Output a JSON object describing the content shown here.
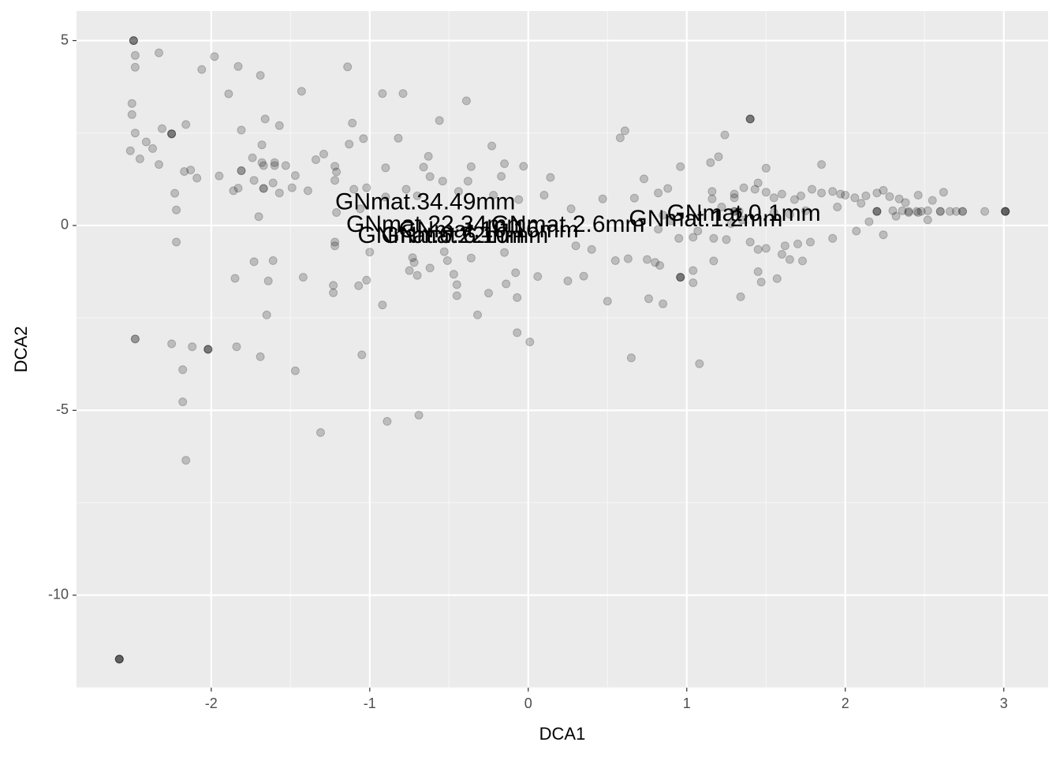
{
  "chart_data": {
    "type": "scatter",
    "xlabel": "DCA1",
    "ylabel": "DCA2",
    "xlim": [
      -2.85,
      3.28
    ],
    "ylim": [
      -12.5,
      5.8
    ],
    "x_ticks": [
      -2,
      -1,
      0,
      1,
      2,
      3
    ],
    "y_ticks": [
      -10,
      -5,
      0,
      5
    ],
    "x_tick_labels": [
      "-2",
      "-1",
      "0",
      "1",
      "2",
      "3"
    ],
    "y_tick_labels": [
      "-10",
      "-5",
      "0",
      "5"
    ],
    "grid": true,
    "background": "#ebebeb",
    "point_color": "#000000",
    "point_opacity": 0.2,
    "points": [
      [
        -2.49,
        5.0
      ],
      [
        -2.49,
        5.0
      ],
      [
        -2.49,
        5.0
      ],
      [
        -2.48,
        4.6
      ],
      [
        -2.48,
        4.28
      ],
      [
        -2.33,
        4.67
      ],
      [
        -2.06,
        4.22
      ],
      [
        -1.98,
        4.57
      ],
      [
        -1.83,
        4.3
      ],
      [
        -1.69,
        4.06
      ],
      [
        -1.14,
        4.29
      ],
      [
        -0.92,
        3.57
      ],
      [
        -0.79,
        3.57
      ],
      [
        -1.43,
        3.63
      ],
      [
        -0.39,
        3.37
      ],
      [
        -1.89,
        3.56
      ],
      [
        -2.5,
        3.3
      ],
      [
        -2.5,
        3.0
      ],
      [
        -2.48,
        2.5
      ],
      [
        -2.31,
        2.62
      ],
      [
        -2.25,
        2.48
      ],
      [
        -2.25,
        2.48
      ],
      [
        -2.25,
        2.48
      ],
      [
        -2.16,
        2.73
      ],
      [
        -1.81,
        2.58
      ],
      [
        -1.66,
        2.88
      ],
      [
        -1.57,
        2.7
      ],
      [
        -1.11,
        2.77
      ],
      [
        -0.56,
        2.84
      ],
      [
        -2.41,
        2.26
      ],
      [
        -2.37,
        2.08
      ],
      [
        -2.51,
        2.02
      ],
      [
        -2.45,
        1.8
      ],
      [
        -2.33,
        1.65
      ],
      [
        -2.13,
        1.5
      ],
      [
        -2.17,
        1.46
      ],
      [
        -2.09,
        1.28
      ],
      [
        -1.95,
        1.34
      ],
      [
        -1.81,
        1.48
      ],
      [
        -1.81,
        1.48
      ],
      [
        -1.74,
        1.83
      ],
      [
        -1.68,
        2.18
      ],
      [
        -1.68,
        1.7
      ],
      [
        -1.67,
        1.62
      ],
      [
        -1.6,
        1.7
      ],
      [
        -1.6,
        1.62
      ],
      [
        -1.53,
        1.62
      ],
      [
        -1.47,
        1.35
      ],
      [
        -1.34,
        1.78
      ],
      [
        -1.29,
        1.93
      ],
      [
        -1.13,
        2.2
      ],
      [
        -1.04,
        2.35
      ],
      [
        -0.82,
        2.36
      ],
      [
        -0.63,
        1.87
      ],
      [
        -0.23,
        2.15
      ],
      [
        -1.22,
        1.6
      ],
      [
        -1.21,
        1.45
      ],
      [
        -0.9,
        1.56
      ],
      [
        -0.66,
        1.58
      ],
      [
        -0.36,
        1.59
      ],
      [
        -0.15,
        1.67
      ],
      [
        -0.03,
        1.6
      ],
      [
        -1.86,
        0.94
      ],
      [
        -1.83,
        1.01
      ],
      [
        -1.73,
        1.22
      ],
      [
        -1.67,
        1.0
      ],
      [
        -1.67,
        1.0
      ],
      [
        -1.61,
        1.15
      ],
      [
        -1.57,
        0.88
      ],
      [
        -1.49,
        1.02
      ],
      [
        -1.39,
        0.94
      ],
      [
        -1.22,
        1.22
      ],
      [
        -1.1,
        0.98
      ],
      [
        -1.02,
        1.02
      ],
      [
        -0.77,
        0.98
      ],
      [
        -0.62,
        1.32
      ],
      [
        -0.54,
        1.2
      ],
      [
        -0.38,
        1.2
      ],
      [
        -0.17,
        1.33
      ],
      [
        0.14,
        1.3
      ],
      [
        -2.23,
        0.87
      ],
      [
        -2.22,
        0.42
      ],
      [
        -1.7,
        0.24
      ],
      [
        -1.21,
        0.35
      ],
      [
        -1.06,
        0.45
      ],
      [
        -0.9,
        0.77
      ],
      [
        -0.7,
        0.8
      ],
      [
        -0.44,
        0.92
      ],
      [
        -0.22,
        0.82
      ],
      [
        -0.06,
        0.7
      ],
      [
        0.1,
        0.82
      ],
      [
        -2.22,
        -0.45
      ],
      [
        -1.73,
        -0.98
      ],
      [
        -1.61,
        -0.95
      ],
      [
        -1.22,
        -0.45
      ],
      [
        -1.22,
        -0.55
      ],
      [
        -1.0,
        -0.72
      ],
      [
        -0.73,
        -0.87
      ],
      [
        -0.72,
        -1.0
      ],
      [
        -0.53,
        -0.71
      ],
      [
        -0.51,
        -0.95
      ],
      [
        -0.36,
        -0.88
      ],
      [
        -0.15,
        -0.73
      ],
      [
        0.3,
        -0.55
      ],
      [
        0.4,
        -0.65
      ],
      [
        -1.85,
        -1.43
      ],
      [
        -1.64,
        -1.5
      ],
      [
        -1.42,
        -1.4
      ],
      [
        -1.23,
        -1.62
      ],
      [
        -1.23,
        -1.82
      ],
      [
        -1.07,
        -1.63
      ],
      [
        -1.02,
        -1.48
      ],
      [
        -0.75,
        -1.22
      ],
      [
        -0.7,
        -1.35
      ],
      [
        -0.62,
        -1.15
      ],
      [
        -0.47,
        -1.32
      ],
      [
        -0.45,
        -1.6
      ],
      [
        -0.45,
        -1.9
      ],
      [
        -0.25,
        -1.83
      ],
      [
        -0.14,
        -1.58
      ],
      [
        -0.08,
        -1.28
      ],
      [
        0.06,
        -1.38
      ],
      [
        0.25,
        -1.5
      ],
      [
        0.35,
        -1.37
      ],
      [
        -0.92,
        -2.15
      ],
      [
        -0.32,
        -2.42
      ],
      [
        -0.07,
        -1.95
      ],
      [
        -1.65,
        -2.42
      ],
      [
        -2.25,
        -3.2
      ],
      [
        -2.12,
        -3.28
      ],
      [
        -1.84,
        -3.28
      ],
      [
        -1.69,
        -3.55
      ],
      [
        -2.18,
        -3.9
      ],
      [
        -1.47,
        -3.93
      ],
      [
        -1.05,
        -3.5
      ],
      [
        -0.07,
        -2.9
      ],
      [
        0.01,
        -3.15
      ],
      [
        -2.48,
        -3.07
      ],
      [
        -2.48,
        -3.07
      ],
      [
        -2.02,
        -3.35
      ],
      [
        -2.02,
        -3.35
      ],
      [
        -2.02,
        -3.35
      ],
      [
        -2.18,
        -4.77
      ],
      [
        -1.31,
        -5.6
      ],
      [
        -0.89,
        -5.3
      ],
      [
        -0.69,
        -5.13
      ],
      [
        -2.16,
        -6.35
      ],
      [
        -2.58,
        -11.73
      ],
      [
        -2.58,
        -11.73
      ],
      [
        -2.58,
        -11.73
      ],
      [
        -2.58,
        -11.73
      ],
      [
        0.5,
        -2.05
      ],
      [
        0.65,
        -3.58
      ],
      [
        0.76,
        -1.98
      ],
      [
        0.85,
        -2.12
      ],
      [
        1.08,
        -3.74
      ],
      [
        1.34,
        -1.93
      ],
      [
        0.96,
        -1.4
      ],
      [
        0.96,
        -1.4
      ],
      [
        0.96,
        -1.4
      ],
      [
        1.04,
        -1.22
      ],
      [
        1.04,
        -1.55
      ],
      [
        1.47,
        -1.53
      ],
      [
        1.57,
        -1.44
      ],
      [
        1.45,
        -1.25
      ],
      [
        0.75,
        -0.92
      ],
      [
        0.8,
        -1.0
      ],
      [
        0.83,
        -1.08
      ],
      [
        0.63,
        -0.9
      ],
      [
        0.55,
        -0.95
      ],
      [
        1.17,
        -0.96
      ],
      [
        1.65,
        -0.92
      ],
      [
        1.73,
        -0.96
      ],
      [
        1.6,
        -0.78
      ],
      [
        0.27,
        0.45
      ],
      [
        0.47,
        0.72
      ],
      [
        0.67,
        0.74
      ],
      [
        0.82,
        0.88
      ],
      [
        0.88,
        1.0
      ],
      [
        0.73,
        1.26
      ],
      [
        0.96,
        1.59
      ],
      [
        1.15,
        1.7
      ],
      [
        1.2,
        1.86
      ],
      [
        1.24,
        2.45
      ],
      [
        0.61,
        2.56
      ],
      [
        0.58,
        2.37
      ],
      [
        1.4,
        2.88
      ],
      [
        1.4,
        2.88
      ],
      [
        1.4,
        2.88
      ],
      [
        1.5,
        1.55
      ],
      [
        1.85,
        1.65
      ],
      [
        1.16,
        0.72
      ],
      [
        1.16,
        0.92
      ],
      [
        1.22,
        0.5
      ],
      [
        1.3,
        0.75
      ],
      [
        1.3,
        0.85
      ],
      [
        1.36,
        1.02
      ],
      [
        1.43,
        0.98
      ],
      [
        1.45,
        1.15
      ],
      [
        1.5,
        0.9
      ],
      [
        1.55,
        0.75
      ],
      [
        1.6,
        0.85
      ],
      [
        1.68,
        0.7
      ],
      [
        1.72,
        0.8
      ],
      [
        1.79,
        0.98
      ],
      [
        1.85,
        0.88
      ],
      [
        1.92,
        0.92
      ],
      [
        1.97,
        0.85
      ],
      [
        2.0,
        0.82
      ],
      [
        2.06,
        0.75
      ],
      [
        2.1,
        0.6
      ],
      [
        2.13,
        0.8
      ],
      [
        2.2,
        0.88
      ],
      [
        2.24,
        0.95
      ],
      [
        2.28,
        0.78
      ],
      [
        2.34,
        0.72
      ],
      [
        2.38,
        0.62
      ],
      [
        2.46,
        0.82
      ],
      [
        2.55,
        0.68
      ],
      [
        2.62,
        0.9
      ],
      [
        1.33,
        0.38
      ],
      [
        1.3,
        0.38
      ],
      [
        1.3,
        0.38
      ],
      [
        2.2,
        0.38
      ],
      [
        2.2,
        0.38
      ],
      [
        2.2,
        0.38
      ],
      [
        2.4,
        0.38
      ],
      [
        2.45,
        0.38
      ],
      [
        2.48,
        0.38
      ],
      [
        2.6,
        0.38
      ],
      [
        2.6,
        0.38
      ],
      [
        2.66,
        0.38
      ],
      [
        2.7,
        0.38
      ],
      [
        2.74,
        0.38
      ],
      [
        2.74,
        0.38
      ],
      [
        2.88,
        0.38
      ],
      [
        3.01,
        0.38
      ],
      [
        3.01,
        0.38
      ],
      [
        3.01,
        0.38
      ],
      [
        3.01,
        0.38
      ],
      [
        2.52,
        0.15
      ],
      [
        2.07,
        -0.15
      ],
      [
        2.24,
        -0.25
      ],
      [
        2.15,
        0.1
      ],
      [
        1.45,
        -0.65
      ],
      [
        1.5,
        -0.62
      ],
      [
        1.4,
        -0.45
      ],
      [
        1.25,
        -0.38
      ],
      [
        1.17,
        -0.35
      ],
      [
        1.07,
        -0.15
      ],
      [
        1.04,
        -0.32
      ],
      [
        0.95,
        -0.35
      ],
      [
        0.82,
        -0.1
      ],
      [
        1.62,
        -0.55
      ],
      [
        1.78,
        -0.45
      ],
      [
        1.7,
        -0.5
      ],
      [
        1.92,
        -0.35
      ],
      [
        1.55,
        0.35
      ],
      [
        1.65,
        0.3
      ],
      [
        1.75,
        0.4
      ],
      [
        1.35,
        0.15
      ],
      [
        1.28,
        0.05
      ],
      [
        0.9,
        0.12
      ],
      [
        0.85,
        0.28
      ],
      [
        1.95,
        0.5
      ],
      [
        2.32,
        0.25
      ],
      [
        2.4,
        0.35
      ],
      [
        2.3,
        0.4
      ],
      [
        2.36,
        0.4
      ],
      [
        2.46,
        0.35
      ],
      [
        2.52,
        0.4
      ]
    ],
    "labels": [
      {
        "text": "GNmat.34.49mm",
        "x": -0.65,
        "y": 0.6
      },
      {
        "text": "GNmat.22.34mm",
        "x": -0.58,
        "y": 0.0
      },
      {
        "text": "GNmat.2.6mm",
        "x": 0.25,
        "y": 0.0
      },
      {
        "text": "GNmat.1.2mm",
        "x": 1.12,
        "y": 0.15
      },
      {
        "text": "GNmat.0.1mm",
        "x": 1.36,
        "y": 0.3
      },
      {
        "text": "GNmat.6.22mm",
        "x": -0.55,
        "y": -0.3
      },
      {
        "text": "GNmat.6.10mm",
        "x": -0.4,
        "y": -0.3
      },
      {
        "text": "GNmat.10.16mm",
        "x": -0.25,
        "y": -0.15
      }
    ]
  }
}
